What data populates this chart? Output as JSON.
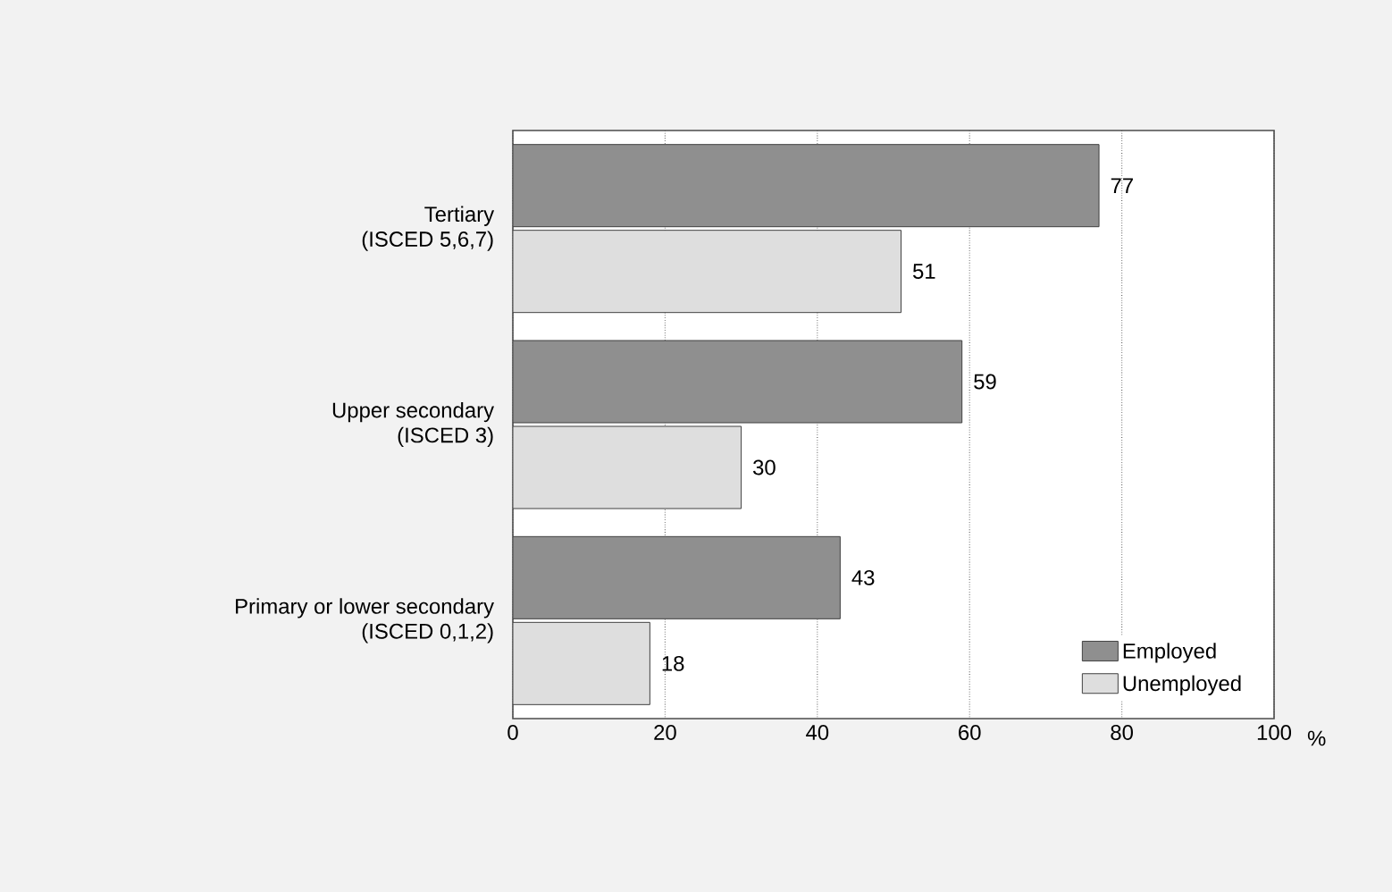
{
  "chart_data": {
    "type": "bar",
    "orientation": "horizontal",
    "categories": [
      "Tertiary (ISCED 5,6,7)",
      "Upper secondary (ISCED 3)",
      "Primary or lower secondary (ISCED 0,1,2)"
    ],
    "series": [
      {
        "name": "Employed",
        "color": "#8f8f8f",
        "values": [
          77,
          59,
          43
        ]
      },
      {
        "name": "Unemployed",
        "color": "#dedede",
        "values": [
          51,
          30,
          18
        ]
      }
    ],
    "xlabel": "%",
    "xlim": [
      0,
      100
    ],
    "xticks": [
      0,
      20,
      40,
      60,
      80,
      100
    ],
    "grid": "x",
    "legend": "bottom right",
    "data_labels": true
  }
}
